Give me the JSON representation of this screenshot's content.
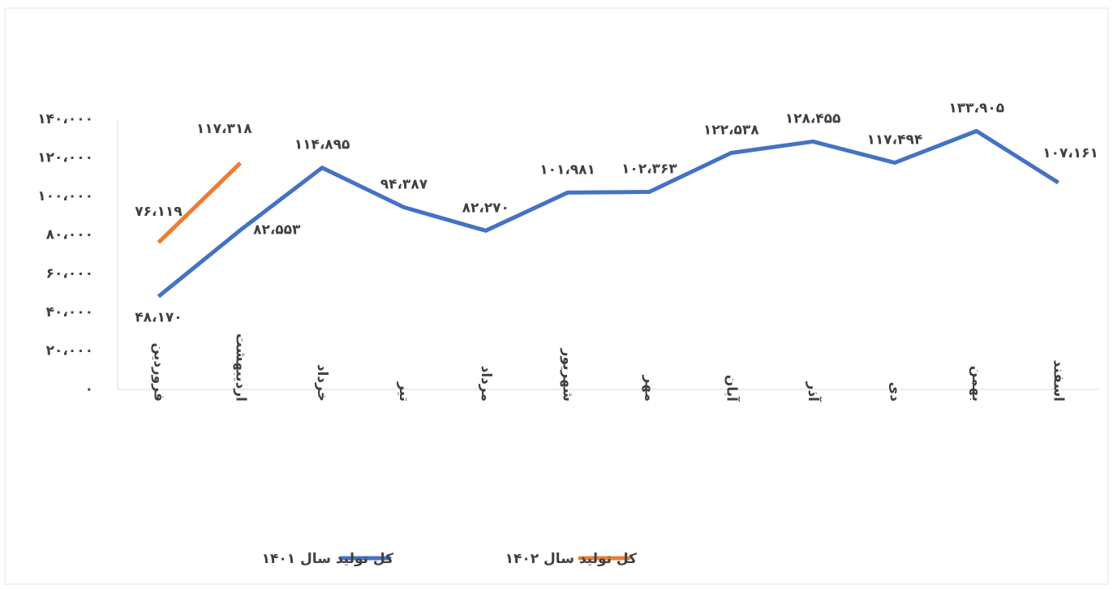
{
  "chart_data": {
    "type": "line",
    "categories": [
      "فروردین",
      "اردیبهشت",
      "خرداد",
      "تیر",
      "مرداد",
      "شهریور",
      "مهر",
      "آبان",
      "آذر",
      "دی",
      "بهمن",
      "اسفند"
    ],
    "series": [
      {
        "name": "کل تولید سال ۱۴۰۱",
        "color": "#4472c4",
        "values": [
          48170,
          82553,
          114895,
          94387,
          82270,
          101981,
          102363,
          122538,
          128455,
          117494,
          133905,
          107161
        ],
        "value_labels": [
          "۴۸،۱۷۰",
          "۸۲،۵۵۳",
          "۱۱۴،۸۹۵",
          "۹۴،۳۸۷",
          "۸۲،۲۷۰",
          "۱۰۱،۹۸۱",
          "۱۰۲،۳۶۳",
          "۱۲۲،۵۳۸",
          "۱۲۸،۴۵۵",
          "۱۱۷،۴۹۴",
          "۱۳۳،۹۰۵",
          "۱۰۷،۱۶۱"
        ]
      },
      {
        "name": "کل تولید سال ۱۴۰۲",
        "color": "#ed7d31",
        "values": [
          76119,
          117318,
          null,
          null,
          null,
          null,
          null,
          null,
          null,
          null,
          null,
          null
        ],
        "value_labels": [
          "۷۶،۱۱۹",
          "۱۱۷،۳۱۸",
          null,
          null,
          null,
          null,
          null,
          null,
          null,
          null,
          null,
          null
        ]
      }
    ],
    "ylim": [
      0,
      140000
    ],
    "yticks": [
      {
        "value": 0,
        "label": "۰"
      },
      {
        "value": 20000,
        "label": "۲۰،۰۰۰"
      },
      {
        "value": 40000,
        "label": "۴۰،۰۰۰"
      },
      {
        "value": 60000,
        "label": "۶۰،۰۰۰"
      },
      {
        "value": 80000,
        "label": "۸۰،۰۰۰"
      },
      {
        "value": 100000,
        "label": "۱۰۰،۰۰۰"
      },
      {
        "value": 120000,
        "label": "۱۲۰،۰۰۰"
      },
      {
        "value": 140000,
        "label": "۱۴۰،۰۰۰"
      }
    ],
    "grid": false,
    "legend": "bottom"
  }
}
